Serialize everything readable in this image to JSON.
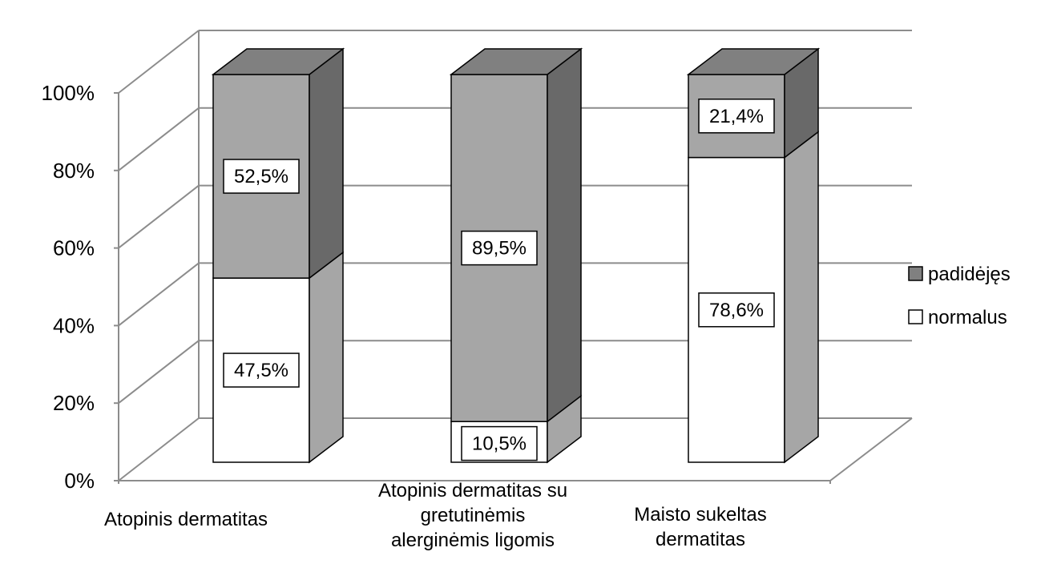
{
  "chart_data": {
    "type": "bar",
    "stacked": true,
    "percent_stacked": true,
    "three_d": true,
    "categories": [
      [
        "Atopinis dermatitas"
      ],
      [
        "Atopinis dermatitas su",
        "gretutinėmis",
        "alerginėmis ligomis"
      ],
      [
        "Maisto sukeltas",
        "dermatitas"
      ]
    ],
    "series": [
      {
        "name": "normalus",
        "values": [
          47.5,
          10.5,
          78.6
        ],
        "labels": [
          "47,5%",
          "10,5%",
          "78,6%"
        ],
        "color": "#ffffff",
        "side_color": "#a6a6a6"
      },
      {
        "name": "padidėjęs",
        "values": [
          52.5,
          89.5,
          21.4
        ],
        "labels": [
          "52,5%",
          "89,5%",
          "21,4%"
        ],
        "color": "#a6a6a6",
        "side_color": "#696969",
        "top_color": "#808080"
      }
    ],
    "y_ticks": [
      "0%",
      "20%",
      "40%",
      "60%",
      "80%",
      "100%"
    ],
    "ylim": [
      0,
      100
    ],
    "grid": true,
    "legend": "right",
    "legend_order": [
      "padidėjęs",
      "normalus"
    ]
  }
}
